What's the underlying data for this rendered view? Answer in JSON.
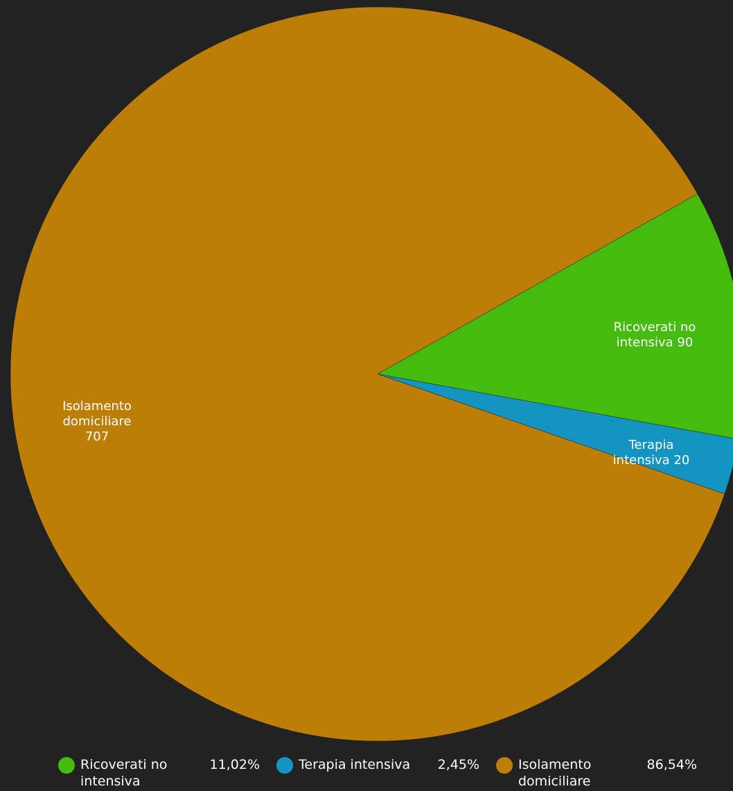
{
  "colors": {
    "background": "#222222",
    "label_text": "#ffffff",
    "slice_border": "#1a1a1a"
  },
  "chart_data": {
    "type": "pie",
    "title": "",
    "slices": [
      {
        "label": "Ricoverati no intensiva",
        "value": 90,
        "percent_text": "11,02%",
        "color": "#45BB0F",
        "slice_label_lines": [
          "Ricoverati no",
          "intensiva 90"
        ],
        "legend_lines": [
          "Ricoverati no",
          "intensiva"
        ]
      },
      {
        "label": "Terapia intensiva",
        "value": 20,
        "percent_text": "2,45%",
        "color": "#1495C1",
        "slice_label_lines": [
          "Terapia",
          "intensiva 20"
        ],
        "legend_lines": [
          "Terapia intensiva"
        ]
      },
      {
        "label": "Isolamento domiciliare",
        "value": 707,
        "percent_text": "86,54%",
        "color": "#BC7E07",
        "slice_label_lines": [
          "Isolamento",
          "domiciliare",
          "707"
        ],
        "legend_lines": [
          "Isolamento",
          "domiciliare"
        ]
      }
    ],
    "legend_position": "bottom"
  }
}
